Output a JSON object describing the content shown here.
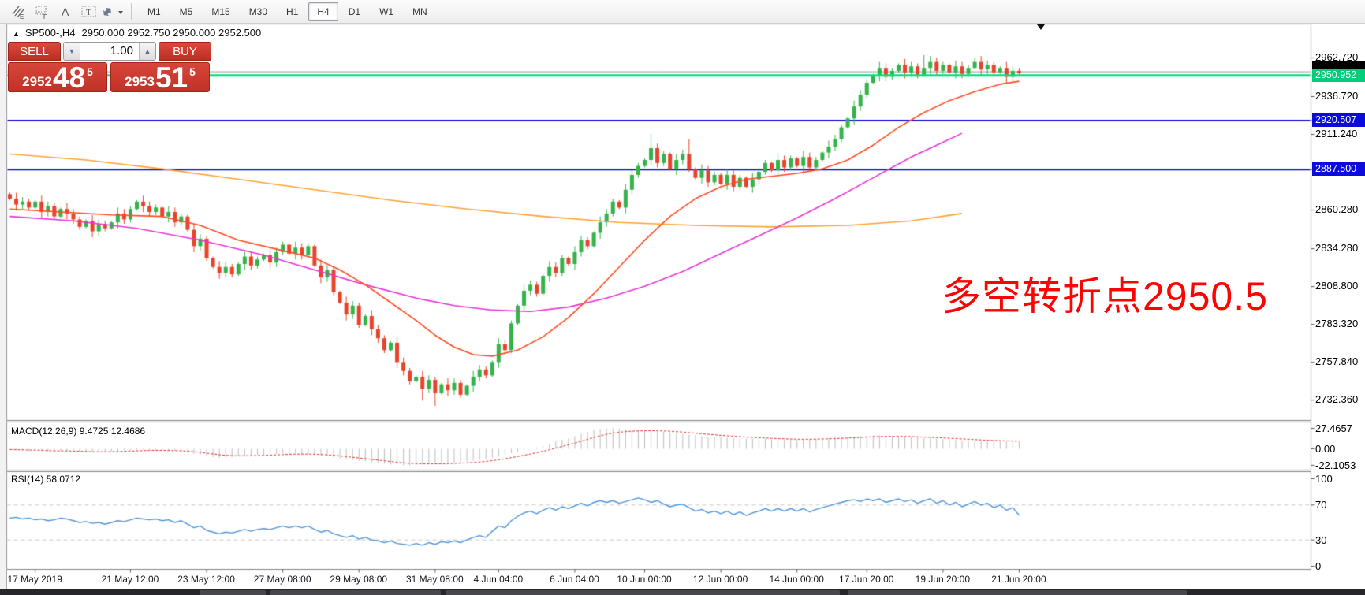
{
  "toolbar": {
    "icons": [
      {
        "name": "expert-advisors-icon",
        "glyph": "E"
      },
      {
        "name": "data-window-icon",
        "glyph": "F"
      },
      {
        "name": "text-label-icon",
        "glyph": "A"
      },
      {
        "name": "text-box-icon",
        "glyph": "T"
      },
      {
        "name": "arrange-objects-icon",
        "glyph": "▾"
      }
    ],
    "timeframes": [
      "M1",
      "M5",
      "M15",
      "M30",
      "H1",
      "H4",
      "D1",
      "W1",
      "MN"
    ],
    "active_timeframe": "H4"
  },
  "chart": {
    "marker": "▲",
    "symbol_tf": "SP500-,H4",
    "ohlc_string": "2950.000 2952.750 2950.000 2952.500"
  },
  "trade_panel": {
    "sell_label": "SELL",
    "buy_label": "BUY",
    "volume": "1.00",
    "spin_down_glyph": "▼",
    "spin_up_glyph": "▲",
    "sell_price_small": "2952",
    "sell_price_big": "48",
    "sell_price_sup": "5",
    "buy_price_small": "2953",
    "buy_price_big": "51",
    "buy_price_sup": "5"
  },
  "annotation": {
    "text": "多空转折点2950.5",
    "color": "#fb0402"
  },
  "price_axis": {
    "green_tag": "2950.952",
    "blue_tags": [
      2920.507,
      2887.5
    ]
  },
  "indicator_macd": {
    "label": "MACD(12,26,9) 9.4725 12.4686",
    "scale": [
      "27.4657",
      "0.00",
      "-22.1053"
    ]
  },
  "indicator_rsi": {
    "label": "RSI(14) 58.0712",
    "scale": [
      "100",
      "70",
      "30",
      "0"
    ]
  },
  "chart_data": {
    "type": "candlestick",
    "symbol": "SP500-",
    "timeframe": "H4",
    "title": "SP500-,H4",
    "ohlc_display": {
      "open": "2950.000",
      "high": "2952.750",
      "low": "2950.000",
      "close": "2952.500"
    },
    "ylim": [
      2724,
      2986
    ],
    "grid": false,
    "price_ticks": [
      2962.72,
      2936.72,
      2920.507,
      2911.24,
      2887.5,
      2860.28,
      2834.28,
      2808.8,
      2783.32,
      2757.84,
      2732.36
    ],
    "hlines": [
      {
        "price": 2950.952,
        "color": "#00e27d",
        "width": 3,
        "tag": "2950.952"
      },
      {
        "price": 2920.507,
        "color": "#1212d8",
        "width": 2,
        "tag": "2920.507"
      },
      {
        "price": 2887.5,
        "color": "#1212d8",
        "width": 2,
        "tag": "2887.500"
      },
      {
        "price": 2953.4,
        "color": "#9a9a9a",
        "width": 1,
        "tag": ""
      }
    ],
    "first_open": 2871,
    "closes": [
      2868,
      2864,
      2866,
      2862,
      2866,
      2859,
      2863,
      2856,
      2861,
      2858,
      2854,
      2849,
      2853,
      2846,
      2851,
      2848,
      2852,
      2858,
      2854,
      2861,
      2866,
      2863,
      2859,
      2862,
      2856,
      2859,
      2852,
      2856,
      2847,
      2836,
      2841,
      2828,
      2822,
      2818,
      2822,
      2817,
      2824,
      2829,
      2823,
      2827,
      2830,
      2825,
      2832,
      2837,
      2831,
      2835,
      2830,
      2836,
      2823,
      2815,
      2820,
      2805,
      2798,
      2790,
      2796,
      2783,
      2789,
      2780,
      2774,
      2766,
      2771,
      2758,
      2752,
      2745,
      2748,
      2740,
      2746,
      2737,
      2743,
      2739,
      2744,
      2736,
      2742,
      2748,
      2753,
      2749,
      2758,
      2770,
      2766,
      2784,
      2796,
      2806,
      2810,
      2804,
      2816,
      2822,
      2818,
      2828,
      2824,
      2832,
      2840,
      2836,
      2845,
      2852,
      2858,
      2866,
      2862,
      2874,
      2884,
      2890,
      2894,
      2902,
      2892,
      2898,
      2888,
      2894,
      2898,
      2888,
      2882,
      2887,
      2879,
      2884,
      2878,
      2884,
      2876,
      2882,
      2876,
      2881,
      2886,
      2892,
      2887,
      2894,
      2889,
      2895,
      2890,
      2896,
      2889,
      2894,
      2899,
      2903,
      2908,
      2916,
      2922,
      2930,
      2938,
      2946,
      2951,
      2956,
      2950,
      2954,
      2958,
      2953,
      2957,
      2951,
      2956,
      2960,
      2954,
      2958,
      2953,
      2957,
      2952,
      2956,
      2960,
      2955,
      2958,
      2953,
      2956,
      2950,
      2954,
      2952.5
    ],
    "spike_highs": {
      "101": 2911.5,
      "107": 2908,
      "144": 2964.7,
      "152": 2963
    },
    "spike_lows": {
      "65": 2732,
      "67": 2728.5
    },
    "ma_fast": {
      "name": "fast-ma",
      "color": "#ff4a21",
      "points": [
        [
          0,
          2861
        ],
        [
          8,
          2859
        ],
        [
          16,
          2857
        ],
        [
          24,
          2856
        ],
        [
          30,
          2850
        ],
        [
          36,
          2840
        ],
        [
          42,
          2834
        ],
        [
          48,
          2828
        ],
        [
          52,
          2820
        ],
        [
          56,
          2810
        ],
        [
          60,
          2798
        ],
        [
          64,
          2786
        ],
        [
          67,
          2776
        ],
        [
          70,
          2768
        ],
        [
          73,
          2763
        ],
        [
          76,
          2762
        ],
        [
          80,
          2766
        ],
        [
          84,
          2775
        ],
        [
          88,
          2788
        ],
        [
          92,
          2804
        ],
        [
          96,
          2822
        ],
        [
          100,
          2840
        ],
        [
          104,
          2856
        ],
        [
          108,
          2868
        ],
        [
          112,
          2876
        ],
        [
          116,
          2881
        ],
        [
          120,
          2883
        ],
        [
          124,
          2885
        ],
        [
          128,
          2888
        ],
        [
          132,
          2894
        ],
        [
          136,
          2904
        ],
        [
          140,
          2916
        ],
        [
          144,
          2926
        ],
        [
          148,
          2934
        ],
        [
          152,
          2940
        ],
        [
          156,
          2945
        ],
        [
          159,
          2947
        ]
      ]
    },
    "ma_mid": {
      "name": "mid-ma",
      "color": "#e832d6",
      "points": [
        [
          0,
          2856
        ],
        [
          10,
          2853
        ],
        [
          20,
          2848
        ],
        [
          30,
          2840
        ],
        [
          40,
          2830
        ],
        [
          48,
          2820
        ],
        [
          56,
          2810
        ],
        [
          64,
          2801
        ],
        [
          70,
          2796
        ],
        [
          76,
          2793
        ],
        [
          82,
          2792
        ],
        [
          88,
          2795
        ],
        [
          94,
          2801
        ],
        [
          100,
          2809
        ],
        [
          106,
          2819
        ],
        [
          112,
          2831
        ],
        [
          118,
          2843
        ],
        [
          124,
          2855
        ],
        [
          130,
          2868
        ],
        [
          136,
          2882
        ],
        [
          142,
          2896
        ],
        [
          147,
          2906
        ],
        [
          150,
          2912
        ]
      ]
    },
    "ma_slow": {
      "name": "slow-ma",
      "color": "#ffa233",
      "points": [
        [
          0,
          2898
        ],
        [
          12,
          2894
        ],
        [
          24,
          2888
        ],
        [
          36,
          2881
        ],
        [
          48,
          2874
        ],
        [
          60,
          2867
        ],
        [
          72,
          2861
        ],
        [
          84,
          2856
        ],
        [
          96,
          2852
        ],
        [
          108,
          2850
        ],
        [
          120,
          2849
        ],
        [
          132,
          2850
        ],
        [
          142,
          2853
        ],
        [
          150,
          2858
        ]
      ]
    },
    "macd": {
      "params": [
        12,
        26,
        9
      ],
      "main_last": 9.4725,
      "signal_last": 12.4686,
      "scale_max": 27.4657,
      "scale_min": -22.1053,
      "hist": [
        -1,
        -2,
        -2,
        -3,
        -2,
        -3,
        -4,
        -4,
        -3,
        -3,
        -4,
        -4,
        -5,
        -5,
        -4,
        -4,
        -3,
        -3,
        -2,
        -2,
        -2,
        -1,
        -1,
        -2,
        -2,
        -3,
        -3,
        -4,
        -5,
        -7,
        -8,
        -10,
        -11,
        -12,
        -12,
        -11,
        -10,
        -9,
        -9,
        -8,
        -8,
        -7,
        -7,
        -6,
        -6,
        -6,
        -7,
        -7,
        -8,
        -9,
        -10,
        -11,
        -13,
        -14,
        -15,
        -16,
        -17,
        -18,
        -19,
        -20,
        -21,
        -21.5,
        -22,
        -22.1,
        -21.5,
        -21,
        -20.5,
        -20,
        -19.5,
        -19,
        -18.5,
        -18,
        -17,
        -16,
        -15,
        -14,
        -12,
        -10,
        -8,
        -6,
        -4,
        -2,
        0,
        2,
        4,
        7,
        10,
        12,
        14,
        17,
        20,
        23,
        25,
        26.5,
        27.4,
        27.46,
        27,
        26.5,
        26,
        25.5,
        25,
        24.5,
        24,
        23,
        22,
        21,
        20,
        19,
        18,
        17,
        16.5,
        16,
        15.5,
        15,
        14.5,
        14,
        13.5,
        13.5,
        13,
        13,
        12.5,
        12.5,
        12,
        12,
        12,
        12.5,
        13,
        13.5,
        14,
        14.5,
        15,
        15.5,
        16,
        16.5,
        17,
        17.5,
        18,
        18,
        17.5,
        17,
        16.5,
        16,
        15.5,
        15,
        14.5,
        14,
        13.5,
        13,
        12.5,
        12,
        11.5,
        11,
        10.5,
        10,
        10,
        9.9,
        9.8,
        9.6,
        9.5,
        9.47
      ]
    },
    "rsi": {
      "period": 14,
      "last": 58.0712,
      "levels": [
        100,
        70,
        30,
        0
      ],
      "values": [
        55,
        56,
        54,
        55,
        53,
        54,
        52,
        53,
        55,
        54,
        52,
        50,
        51,
        49,
        50,
        48,
        50,
        52,
        51,
        53,
        55,
        54,
        53,
        54,
        52,
        53,
        50,
        52,
        48,
        44,
        46,
        41,
        39,
        37,
        39,
        38,
        40,
        42,
        40,
        42,
        43,
        42,
        44,
        46,
        44,
        46,
        44,
        46,
        42,
        39,
        41,
        37,
        35,
        33,
        35,
        31,
        33,
        30,
        29,
        27,
        29,
        26,
        25,
        24,
        26,
        24,
        27,
        25,
        28,
        27,
        29,
        27,
        30,
        33,
        35,
        33,
        40,
        46,
        44,
        52,
        57,
        61,
        63,
        60,
        64,
        67,
        64,
        68,
        66,
        69,
        72,
        69,
        73,
        75,
        73,
        75,
        72,
        74,
        76,
        78,
        76,
        73,
        75,
        71,
        68,
        70,
        71,
        67,
        63,
        65,
        61,
        63,
        60,
        63,
        59,
        62,
        58,
        61,
        63,
        66,
        63,
        66,
        63,
        66,
        63,
        66,
        62,
        65,
        67,
        69,
        71,
        73,
        75,
        76,
        74,
        77,
        75,
        77,
        73,
        75,
        77,
        74,
        76,
        72,
        75,
        77,
        72,
        75,
        70,
        73,
        68,
        71,
        74,
        70,
        72,
        67,
        70,
        64,
        67,
        58.07
      ]
    },
    "time_labels": [
      {
        "text": "17 May 2019",
        "bar": 4
      },
      {
        "text": "21 May 12:00",
        "bar": 19
      },
      {
        "text": "23 May 12:00",
        "bar": 31
      },
      {
        "text": "27 May 08:00",
        "bar": 43
      },
      {
        "text": "29 May 08:00",
        "bar": 55
      },
      {
        "text": "31 May 08:00",
        "bar": 67
      },
      {
        "text": "4 Jun 04:00",
        "bar": 77
      },
      {
        "text": "6 Jun 04:00",
        "bar": 89
      },
      {
        "text": "10 Jun 00:00",
        "bar": 100
      },
      {
        "text": "12 Jun 00:00",
        "bar": 112
      },
      {
        "text": "14 Jun 00:00",
        "bar": 124
      },
      {
        "text": "17 Jun 20:00",
        "bar": 135
      },
      {
        "text": "19 Jun 20:00",
        "bar": 147
      },
      {
        "text": "21 Jun 20:00",
        "bar": 159
      }
    ],
    "colors": {
      "up": "#33b34a",
      "down": "#e8432a",
      "macd_hist": "#bcbcbc",
      "macd_signal": "#e02f2f",
      "rsi_line": "#4b94dc"
    }
  }
}
